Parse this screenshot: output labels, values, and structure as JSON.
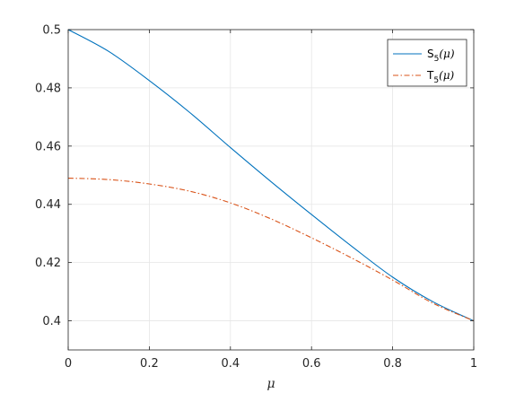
{
  "chart_data": {
    "type": "line",
    "title": "",
    "xlabel": "μ",
    "ylabel": "",
    "xlim": [
      0,
      1
    ],
    "ylim": [
      0.39,
      0.5
    ],
    "xticks": [
      0,
      0.2,
      0.4,
      0.6,
      0.8,
      1
    ],
    "xtick_labels": [
      "0",
      "0.2",
      "0.4",
      "0.6",
      "0.8",
      "1"
    ],
    "yticks": [
      0.4,
      0.42,
      0.44,
      0.46,
      0.48,
      0.5
    ],
    "ytick_labels": [
      "0.4",
      "0.42",
      "0.44",
      "0.46",
      "0.48",
      "0.5"
    ],
    "grid": true,
    "legend_position": "top-right",
    "x": [
      0,
      0.1,
      0.2,
      0.3,
      0.4,
      0.5,
      0.6,
      0.7,
      0.8,
      0.9,
      1.0
    ],
    "series": [
      {
        "legend_base": "S",
        "legend_sub": "5",
        "legend_arg": "(μ)",
        "color": "#0072BD",
        "style": "solid",
        "values": [
          0.5,
          0.4925,
          0.4825,
          0.4715,
          0.4595,
          0.4478,
          0.4365,
          0.4255,
          0.415,
          0.4065,
          0.4
        ]
      },
      {
        "legend_base": "T",
        "legend_sub": "5",
        "legend_arg": "(μ)",
        "color": "#D95319",
        "style": "dashdot",
        "values": [
          0.449,
          0.4485,
          0.447,
          0.4445,
          0.4405,
          0.435,
          0.4285,
          0.4215,
          0.414,
          0.406,
          0.4
        ]
      }
    ]
  }
}
